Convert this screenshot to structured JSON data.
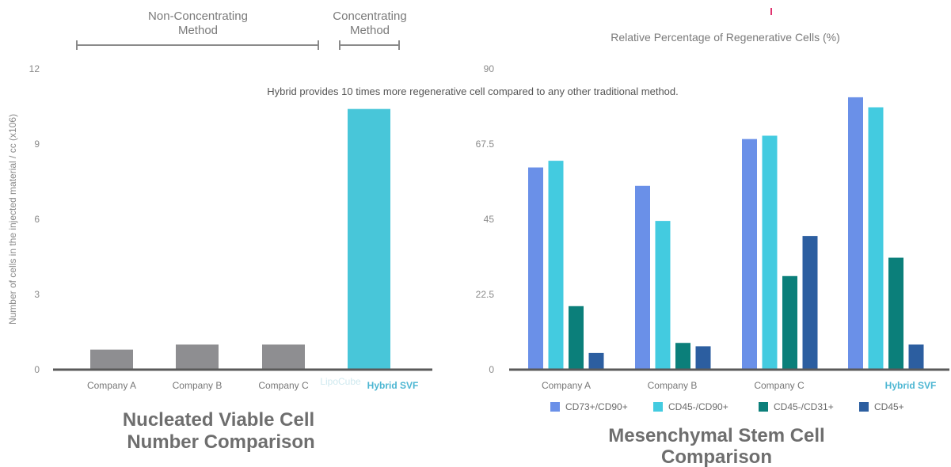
{
  "caption": "Hybrid provides 10 times more regenerative cell compared to any other traditional method.",
  "colors": {
    "grey_bar": "#8e8e91",
    "cyan": "#48c6d9",
    "blue": "#6a90e8",
    "cyan2": "#43cbe0",
    "teal": "#0b7f7a",
    "navy": "#2c5ea0",
    "axis": "#5a5a5a",
    "title": "#6e6e6e",
    "label": "#777777",
    "hybrid_label": "#4cb6d2",
    "pink": "#e0336f"
  },
  "left_chart": {
    "group_nonconc": "Non-Concentrating\nMethod",
    "group_conc": "Concentrating\nMethod",
    "ylabel": "Number of cells in the injected material / cc (x106)",
    "ticks": [
      "0",
      "3",
      "6",
      "9",
      "12"
    ],
    "lipocube_label": "LipoCube",
    "title_line1": "Nucleated Viable Cell",
    "title_line2": "Number Comparison"
  },
  "right_chart": {
    "title_top": "Relative Percentage of Regenerative Cells (%)",
    "ticks": [
      "0",
      "22.5",
      "45",
      "67.5",
      "90"
    ],
    "title_line1": "Mesenchymal Stem Cell",
    "title_line2": "Comparison"
  },
  "chart_data": [
    {
      "type": "bar",
      "ylabel": "Number of cells in the injected material / cc (x106)",
      "ylim": [
        0,
        12
      ],
      "categories": [
        "Company A",
        "Company B",
        "Company C",
        "Hybrid SVF"
      ],
      "values": [
        0.8,
        1.0,
        1.0,
        10.4
      ],
      "grid": false
    },
    {
      "type": "bar",
      "title": "Relative Percentage of Regenerative Cells (%)",
      "ylim": [
        0,
        90
      ],
      "categories": [
        "Company A",
        "Company B",
        "Company C",
        "Hybrid SVF"
      ],
      "series": [
        {
          "name": "CD73+/CD90+",
          "values": [
            60.5,
            55,
            69,
            81.5
          ]
        },
        {
          "name": "CD45-/CD90+",
          "values": [
            62.5,
            44.5,
            70,
            78.5
          ]
        },
        {
          "name": "CD45-/CD31+",
          "values": [
            19,
            8,
            28,
            33.5
          ]
        },
        {
          "name": "CD45+",
          "values": [
            5,
            7,
            40,
            7.5
          ]
        }
      ],
      "legend": "bottom",
      "grid": false
    }
  ]
}
